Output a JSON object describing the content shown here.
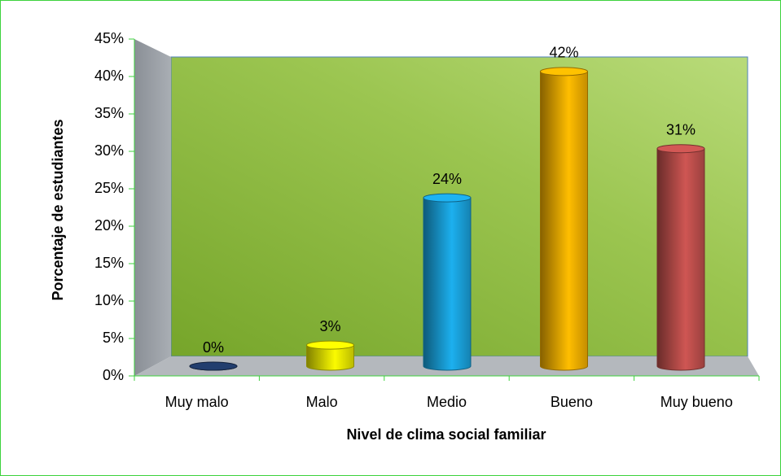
{
  "chart_data": {
    "type": "bar3d",
    "categories": [
      "Muy malo",
      "Malo",
      "Medio",
      "Bueno",
      "Muy bueno"
    ],
    "values": [
      0,
      3,
      24,
      42,
      31
    ],
    "value_labels": [
      "0%",
      "3%",
      "24%",
      "42%",
      "31%"
    ],
    "colors": [
      "#1f3864",
      "#e8e800",
      "#1aa3dd",
      "#f5b000",
      "#c0504d"
    ],
    "ylim": [
      0,
      45
    ],
    "yticks": [
      {
        "value": 0,
        "label": "0%"
      },
      {
        "value": 5,
        "label": "5%"
      },
      {
        "value": 10,
        "label": "10%"
      },
      {
        "value": 15,
        "label": "15%"
      },
      {
        "value": 20,
        "label": "20%"
      },
      {
        "value": 25,
        "label": "25%"
      },
      {
        "value": 30,
        "label": "30%"
      },
      {
        "value": 35,
        "label": "35%"
      },
      {
        "value": 40,
        "label": "40%"
      },
      {
        "value": 45,
        "label": "45%"
      }
    ],
    "y_label": "Porcentaje de estudiantes",
    "x_label": "Nivel de clima social familiar"
  }
}
